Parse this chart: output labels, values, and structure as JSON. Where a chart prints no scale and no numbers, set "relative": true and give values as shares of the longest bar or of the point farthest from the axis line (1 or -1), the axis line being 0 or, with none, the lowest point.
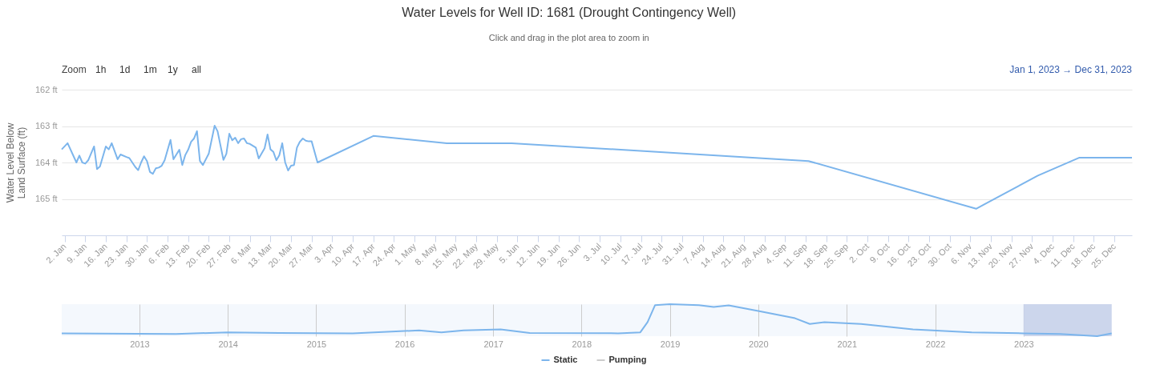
{
  "chart_data": [
    {
      "type": "line",
      "title": "Water Levels for Well ID: 1681 (Drought Contingency Well)",
      "subtitle": "Click and drag in the plot area to zoom in",
      "ylabel": "Water Level Below Land Surface (ft)",
      "annotations": [
        "Zoom",
        "1h",
        "1d",
        "1m",
        "1y",
        "all",
        "Jan 1, 2023 → Dec 31, 2023"
      ],
      "x": [
        "2023-01-01",
        "2023-01-03",
        "2023-01-06",
        "2023-01-07",
        "2023-01-08",
        "2023-01-09",
        "2023-01-10",
        "2023-01-12",
        "2023-01-13",
        "2023-01-14",
        "2023-01-16",
        "2023-01-17",
        "2023-01-18",
        "2023-01-20",
        "2023-01-21",
        "2023-01-23",
        "2023-01-24",
        "2023-01-25",
        "2023-01-26",
        "2023-01-27",
        "2023-01-28",
        "2023-01-29",
        "2023-01-30",
        "2023-01-31",
        "2023-02-01",
        "2023-02-02",
        "2023-02-03",
        "2023-02-04",
        "2023-02-05",
        "2023-02-07",
        "2023-02-08",
        "2023-02-10",
        "2023-02-11",
        "2023-02-12",
        "2023-02-13",
        "2023-02-14",
        "2023-02-15",
        "2023-02-16",
        "2023-02-17",
        "2023-02-18",
        "2023-02-20",
        "2023-02-22",
        "2023-02-23",
        "2023-02-25",
        "2023-02-26",
        "2023-02-27",
        "2023-02-28",
        "2023-03-01",
        "2023-03-02",
        "2023-03-03",
        "2023-03-04",
        "2023-03-05",
        "2023-03-06",
        "2023-03-08",
        "2023-03-09",
        "2023-03-11",
        "2023-03-12",
        "2023-03-13",
        "2023-03-14",
        "2023-03-15",
        "2023-03-16",
        "2023-03-17",
        "2023-03-18",
        "2023-03-19",
        "2023-03-20",
        "2023-03-21",
        "2023-03-22",
        "2023-03-23",
        "2023-03-24",
        "2023-03-25",
        "2023-03-26",
        "2023-03-27",
        "2023-03-29",
        "2023-04-17",
        "2023-05-12",
        "2023-06-03",
        "2023-09-12",
        "2023-11-08",
        "2023-11-29",
        "2023-12-13",
        "2023-12-31"
      ],
      "series": [
        {
          "name": "Static",
          "color": "#7cb5ec",
          "values": [
            163.64,
            163.47,
            164.0,
            163.81,
            164.0,
            164.03,
            163.94,
            163.56,
            164.18,
            164.11,
            163.56,
            163.64,
            163.47,
            163.91,
            163.78,
            163.85,
            163.88,
            164.0,
            164.12,
            164.21,
            164.0,
            163.83,
            163.96,
            164.26,
            164.31,
            164.16,
            164.14,
            164.09,
            163.94,
            163.38,
            163.91,
            163.65,
            164.07,
            163.8,
            163.65,
            163.43,
            163.34,
            163.14,
            163.96,
            164.07,
            163.76,
            162.99,
            163.14,
            163.93,
            163.76,
            163.21,
            163.39,
            163.32,
            163.47,
            163.36,
            163.34,
            163.47,
            163.49,
            163.59,
            163.89,
            163.61,
            163.23,
            163.64,
            163.71,
            163.94,
            163.8,
            163.47,
            164.0,
            164.22,
            164.09,
            164.07,
            163.59,
            163.43,
            163.34,
            163.4,
            163.42,
            163.42,
            164.0,
            163.27,
            163.47,
            163.47,
            163.96,
            165.27,
            164.36,
            163.87,
            163.87
          ]
        },
        {
          "name": "Pumping",
          "color": "#cccccc",
          "values": [
            null,
            null,
            null,
            null,
            null,
            null,
            null,
            null,
            null,
            null,
            null,
            null,
            null,
            null,
            null,
            null,
            null,
            null,
            null,
            null,
            null,
            null,
            null,
            null,
            null,
            null,
            null,
            null,
            null,
            null,
            null,
            null,
            null,
            null,
            null,
            null,
            null,
            null,
            null,
            null,
            null,
            null,
            null,
            null,
            null,
            null,
            null,
            null,
            null,
            null,
            null,
            null,
            null,
            null,
            null,
            null,
            null,
            null,
            null,
            null,
            null,
            null,
            null,
            null,
            null,
            null,
            null,
            null,
            null,
            null,
            null,
            null,
            null,
            null,
            null,
            null,
            null,
            null,
            null,
            null,
            null
          ]
        }
      ],
      "legend": "bottom",
      "grid": "y",
      "xlim": [
        "2023-01-01",
        "2023-12-31"
      ],
      "xticks": [
        {
          "value": "2023-01-02",
          "label": "2. Jan"
        },
        {
          "value": "2023-01-09",
          "label": "9. Jan"
        },
        {
          "value": "2023-01-16",
          "label": "16. Jan"
        },
        {
          "value": "2023-01-23",
          "label": "23. Jan"
        },
        {
          "value": "2023-01-30",
          "label": "30. Jan"
        },
        {
          "value": "2023-02-06",
          "label": "6. Feb"
        },
        {
          "value": "2023-02-13",
          "label": "13. Feb"
        },
        {
          "value": "2023-02-20",
          "label": "20. Feb"
        },
        {
          "value": "2023-02-27",
          "label": "27. Feb"
        },
        {
          "value": "2023-03-06",
          "label": "6. Mar"
        },
        {
          "value": "2023-03-13",
          "label": "13. Mar"
        },
        {
          "value": "2023-03-20",
          "label": "20. Mar"
        },
        {
          "value": "2023-03-27",
          "label": "27. Mar"
        },
        {
          "value": "2023-04-03",
          "label": "3. Apr"
        },
        {
          "value": "2023-04-10",
          "label": "10. Apr"
        },
        {
          "value": "2023-04-17",
          "label": "17. Apr"
        },
        {
          "value": "2023-04-24",
          "label": "24. Apr"
        },
        {
          "value": "2023-05-01",
          "label": "1. May"
        },
        {
          "value": "2023-05-08",
          "label": "8. May"
        },
        {
          "value": "2023-05-15",
          "label": "15. May"
        },
        {
          "value": "2023-05-22",
          "label": "22. May"
        },
        {
          "value": "2023-05-29",
          "label": "29. May"
        },
        {
          "value": "2023-06-05",
          "label": "5. Jun"
        },
        {
          "value": "2023-06-12",
          "label": "12. Jun"
        },
        {
          "value": "2023-06-19",
          "label": "19. Jun"
        },
        {
          "value": "2023-06-26",
          "label": "26. Jun"
        },
        {
          "value": "2023-07-03",
          "label": "3. Jul"
        },
        {
          "value": "2023-07-10",
          "label": "10. Jul"
        },
        {
          "value": "2023-07-17",
          "label": "17. Jul"
        },
        {
          "value": "2023-07-24",
          "label": "24. Jul"
        },
        {
          "value": "2023-07-31",
          "label": "31. Jul"
        },
        {
          "value": "2023-08-07",
          "label": "7. Aug"
        },
        {
          "value": "2023-08-14",
          "label": "14. Aug"
        },
        {
          "value": "2023-08-21",
          "label": "21. Aug"
        },
        {
          "value": "2023-08-28",
          "label": "28. Aug"
        },
        {
          "value": "2023-09-04",
          "label": "4. Sep"
        },
        {
          "value": "2023-09-11",
          "label": "11. Sep"
        },
        {
          "value": "2023-09-18",
          "label": "18. Sep"
        },
        {
          "value": "2023-09-25",
          "label": "25. Sep"
        },
        {
          "value": "2023-10-02",
          "label": "2. Oct"
        },
        {
          "value": "2023-10-09",
          "label": "9. Oct"
        },
        {
          "value": "2023-10-16",
          "label": "16. Oct"
        },
        {
          "value": "2023-10-23",
          "label": "23. Oct"
        },
        {
          "value": "2023-10-30",
          "label": "30. Oct"
        },
        {
          "value": "2023-11-06",
          "label": "6. Nov"
        },
        {
          "value": "2023-11-13",
          "label": "13. Nov"
        },
        {
          "value": "2023-11-20",
          "label": "20. Nov"
        },
        {
          "value": "2023-11-27",
          "label": "27. Nov"
        },
        {
          "value": "2023-12-04",
          "label": "4. Dec"
        },
        {
          "value": "2023-12-11",
          "label": "11. Dec"
        },
        {
          "value": "2023-12-18",
          "label": "18. Dec"
        },
        {
          "value": "2023-12-25",
          "label": "25. Dec"
        }
      ],
      "ylim": [
        166,
        162
      ],
      "yticks": [
        {
          "value": 162,
          "label": "162 ft"
        },
        {
          "value": 163,
          "label": "163 ft"
        },
        {
          "value": 164,
          "label": "164 ft"
        },
        {
          "value": 165,
          "label": "165 ft"
        }
      ]
    },
    {
      "type": "line",
      "relative": true,
      "x": [
        "2012-02-15",
        "2013-06",
        "2014-01",
        "2014-08",
        "2015-06",
        "2016-03",
        "2016-06",
        "2016-09",
        "2017-02",
        "2017-06",
        "2018-06",
        "2018-09",
        "2018-10",
        "2018-11",
        "2019-01",
        "2019-05",
        "2019-07",
        "2019-09",
        "2020-01",
        "2020-06",
        "2020-08",
        "2020-10",
        "2021-03",
        "2021-10",
        "2022-06",
        "2023-01",
        "2023-06",
        "2023-11",
        "2023-12-31"
      ],
      "series": [
        {
          "color": "#7cb5ec",
          "values": [
            0.09,
            0.07,
            0.12,
            0.1,
            0.09,
            0.18,
            0.12,
            0.18,
            0.21,
            0.1,
            0.09,
            0.12,
            0.44,
            0.97,
            1.0,
            0.97,
            0.91,
            0.96,
            0.79,
            0.56,
            0.38,
            0.44,
            0.38,
            0.21,
            0.12,
            0.09,
            0.07,
            0.0,
            0.09
          ]
        }
      ],
      "xlim": [
        "2012-02-15",
        "2024-01-01"
      ],
      "xticks": [
        "2013",
        "2014",
        "2015",
        "2016",
        "2017",
        "2018",
        "2019",
        "2020",
        "2021",
        "2022",
        "2023"
      ],
      "grid": "x",
      "bands": [
        {
          "axis": "x",
          "from": "2023-01-01",
          "to": "2023-12-31",
          "color": "#c8d2ea"
        }
      ]
    }
  ]
}
